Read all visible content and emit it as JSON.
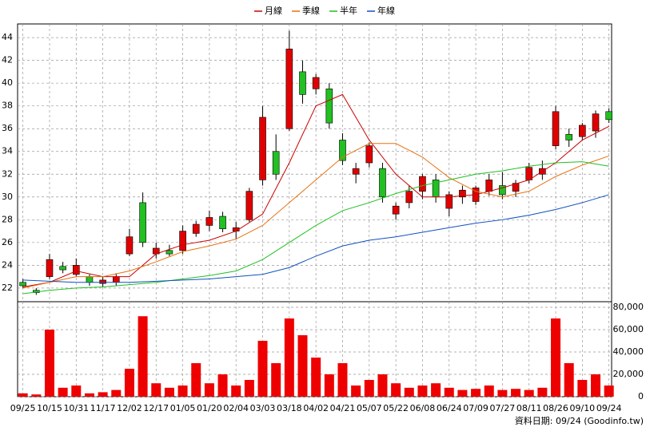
{
  "chart_data": [
    {
      "type": "candlestick",
      "legend_position": "top",
      "up_color": "#e00000",
      "down_color": "#22c022",
      "grid": true,
      "x": [
        0,
        0.5,
        1,
        1.5,
        2,
        2.5,
        3,
        3.5,
        4,
        4.5,
        5,
        5.5,
        6,
        6.5,
        7,
        7.5,
        8,
        8.5,
        9,
        9.5,
        10,
        10.5,
        11,
        11.5,
        12,
        12.5,
        13,
        13.5,
        14,
        14.5,
        15,
        15.5,
        16,
        16.5,
        17,
        17.5,
        18,
        18.5,
        19,
        19.5,
        20,
        20.5,
        21,
        21.5,
        22
      ],
      "open": [
        22.5,
        21.8,
        23.0,
        23.9,
        23.2,
        23.0,
        22.4,
        22.5,
        25.0,
        29.5,
        25.0,
        25.3,
        25.3,
        26.8,
        27.5,
        28.3,
        27.0,
        28.0,
        31.5,
        34.0,
        36.0,
        41.0,
        39.5,
        39.5,
        35.0,
        32.0,
        33.0,
        32.5,
        28.5,
        29.5,
        30.5,
        31.5,
        29.0,
        30.0,
        29.6,
        30.5,
        31.0,
        30.5,
        31.5,
        32.0,
        34.5,
        35.5,
        35.3,
        35.8,
        37.5
      ],
      "high": [
        22.8,
        22.0,
        25.0,
        24.3,
        24.6,
        23.2,
        23.0,
        23.3,
        27.2,
        30.4,
        26.0,
        25.8,
        27.5,
        27.9,
        28.8,
        28.7,
        27.8,
        30.8,
        38.0,
        35.5,
        44.6,
        42.0,
        40.8,
        40.0,
        35.6,
        33.0,
        34.8,
        33.0,
        29.5,
        31.0,
        32.0,
        32.0,
        30.5,
        31.0,
        31.0,
        32.0,
        32.2,
        31.5,
        33.0,
        33.2,
        38.0,
        36.0,
        36.5,
        37.6,
        37.8
      ],
      "low": [
        22.0,
        21.4,
        22.8,
        23.3,
        23.0,
        22.2,
        22.1,
        22.2,
        24.8,
        25.6,
        24.6,
        24.8,
        25.0,
        26.5,
        27.0,
        26.9,
        26.3,
        27.8,
        31.0,
        31.5,
        35.8,
        38.2,
        39.0,
        36.0,
        32.8,
        31.2,
        32.6,
        29.5,
        28.0,
        29.0,
        29.8,
        29.5,
        28.3,
        29.4,
        29.3,
        30.1,
        29.8,
        30.0,
        31.2,
        31.5,
        34.2,
        34.4,
        35.0,
        35.2,
        36.5
      ],
      "close": [
        22.2,
        21.6,
        24.5,
        23.6,
        24.0,
        22.5,
        22.7,
        23.0,
        26.5,
        26.0,
        25.5,
        25.0,
        27.0,
        27.6,
        28.2,
        27.2,
        27.3,
        30.5,
        37.0,
        32.0,
        43.0,
        39.0,
        40.5,
        36.5,
        33.2,
        32.5,
        34.5,
        30.0,
        29.2,
        30.5,
        31.8,
        30.0,
        30.2,
        30.6,
        30.8,
        31.5,
        30.2,
        31.2,
        32.6,
        32.5,
        37.5,
        35.0,
        36.3,
        37.3,
        36.8
      ],
      "ylim": [
        20.8,
        45.2
      ],
      "yticks": [
        22,
        24,
        26,
        28,
        30,
        32,
        34,
        36,
        38,
        40,
        42,
        44
      ],
      "xlim": [
        -0.2,
        22.1
      ],
      "series": [
        {
          "name": "月線",
          "color": "#cc0000",
          "x": [
            0,
            1,
            2,
            3,
            4,
            5,
            6,
            7,
            8,
            9,
            10,
            11,
            12,
            13,
            14,
            15,
            16,
            17,
            18,
            19,
            20,
            21,
            22
          ],
          "values": [
            22.1,
            22.5,
            23.5,
            23.0,
            23.0,
            25.0,
            25.8,
            26.2,
            27.0,
            28.5,
            33.0,
            38.0,
            39.0,
            35.0,
            32.0,
            30.0,
            30.0,
            30.2,
            30.8,
            31.5,
            33.0,
            35.0,
            36.2
          ]
        },
        {
          "name": "季線",
          "color": "#e87010",
          "x": [
            0,
            1,
            2,
            3,
            4,
            5,
            6,
            7,
            8,
            9,
            10,
            11,
            12,
            13,
            14,
            15,
            16,
            17,
            18,
            19,
            20,
            21,
            22
          ],
          "values": [
            22.0,
            22.5,
            23.0,
            23.0,
            23.5,
            24.3,
            25.2,
            25.7,
            26.3,
            27.5,
            29.5,
            31.5,
            33.5,
            34.7,
            34.7,
            33.5,
            31.7,
            30.5,
            30.0,
            30.5,
            31.8,
            32.8,
            33.6
          ]
        },
        {
          "name": "半年",
          "color": "#20c020",
          "x": [
            0,
            1,
            2,
            3,
            4,
            5,
            6,
            7,
            8,
            9,
            10,
            11,
            12,
            13,
            14,
            15,
            16,
            17,
            18,
            19,
            20,
            21,
            22
          ],
          "values": [
            21.5,
            21.8,
            22.0,
            22.1,
            22.3,
            22.5,
            22.8,
            23.1,
            23.5,
            24.5,
            26.0,
            27.5,
            28.8,
            29.5,
            30.3,
            31.0,
            31.5,
            32.0,
            32.3,
            32.7,
            33.0,
            33.1,
            32.7
          ]
        },
        {
          "name": "年線",
          "color": "#1050c0",
          "x": [
            0,
            1,
            2,
            3,
            4,
            5,
            6,
            7,
            8,
            9,
            10,
            11,
            12,
            13,
            14,
            15,
            16,
            17,
            18,
            19,
            20,
            21,
            22
          ],
          "values": [
            22.7,
            22.6,
            22.5,
            22.5,
            22.5,
            22.6,
            22.7,
            22.8,
            23.0,
            23.2,
            23.8,
            24.8,
            25.7,
            26.2,
            26.5,
            26.9,
            27.3,
            27.7,
            28.0,
            28.4,
            28.9,
            29.5,
            30.2
          ]
        }
      ]
    },
    {
      "type": "bar",
      "color": "#ee0000",
      "grid": true,
      "x": [
        0,
        0.5,
        1,
        1.5,
        2,
        2.5,
        3,
        3.5,
        4,
        4.5,
        5,
        5.5,
        6,
        6.5,
        7,
        7.5,
        8,
        8.5,
        9,
        9.5,
        10,
        10.5,
        11,
        11.5,
        12,
        12.5,
        13,
        13.5,
        14,
        14.5,
        15,
        15.5,
        16,
        16.5,
        17,
        17.5,
        18,
        18.5,
        19,
        19.5,
        20,
        20.5,
        21,
        21.5,
        22
      ],
      "values": [
        3000,
        2000,
        60000,
        8000,
        10000,
        3000,
        4000,
        6000,
        25000,
        72000,
        12000,
        8000,
        10000,
        30000,
        12000,
        20000,
        10000,
        15000,
        50000,
        30000,
        70000,
        55000,
        35000,
        20000,
        30000,
        10000,
        15000,
        20000,
        12000,
        8000,
        10000,
        12000,
        8000,
        6000,
        7000,
        10000,
        6000,
        7000,
        6000,
        8000,
        70000,
        30000,
        15000,
        20000,
        10000
      ],
      "xlim": [
        -0.2,
        22.1
      ],
      "ylim": [
        0,
        85000
      ],
      "yticks": [
        0,
        {
          "value": 20000,
          "label": "20,000"
        },
        {
          "value": 40000,
          "label": "40,000"
        },
        {
          "value": 60000,
          "label": "60,000"
        },
        {
          "value": 80000,
          "label": "80,000"
        }
      ],
      "xticks": [
        {
          "value": 0,
          "label": "09/25"
        },
        {
          "value": 1,
          "label": "10/15"
        },
        {
          "value": 2,
          "label": "10/31"
        },
        {
          "value": 3,
          "label": "11/17"
        },
        {
          "value": 4,
          "label": "12/02"
        },
        {
          "value": 5,
          "label": "12/17"
        },
        {
          "value": 6,
          "label": "01/05"
        },
        {
          "value": 7,
          "label": "01/20"
        },
        {
          "value": 8,
          "label": "02/04"
        },
        {
          "value": 9,
          "label": "03/03"
        },
        {
          "value": 10,
          "label": "03/18"
        },
        {
          "value": 11,
          "label": "04/02"
        },
        {
          "value": 12,
          "label": "04/21"
        },
        {
          "value": 13,
          "label": "05/07"
        },
        {
          "value": 14,
          "label": "05/22"
        },
        {
          "value": 15,
          "label": "06/08"
        },
        {
          "value": 16,
          "label": "06/24"
        },
        {
          "value": 17,
          "label": "07/09"
        },
        {
          "value": 18,
          "label": "07/27"
        },
        {
          "value": 19,
          "label": "08/11"
        },
        {
          "value": 20,
          "label": "08/26"
        },
        {
          "value": 21,
          "label": "09/10"
        },
        {
          "value": 22,
          "label": "09/24"
        }
      ],
      "source": "資料日期: 09/24 (Goodinfo.tw)"
    }
  ]
}
